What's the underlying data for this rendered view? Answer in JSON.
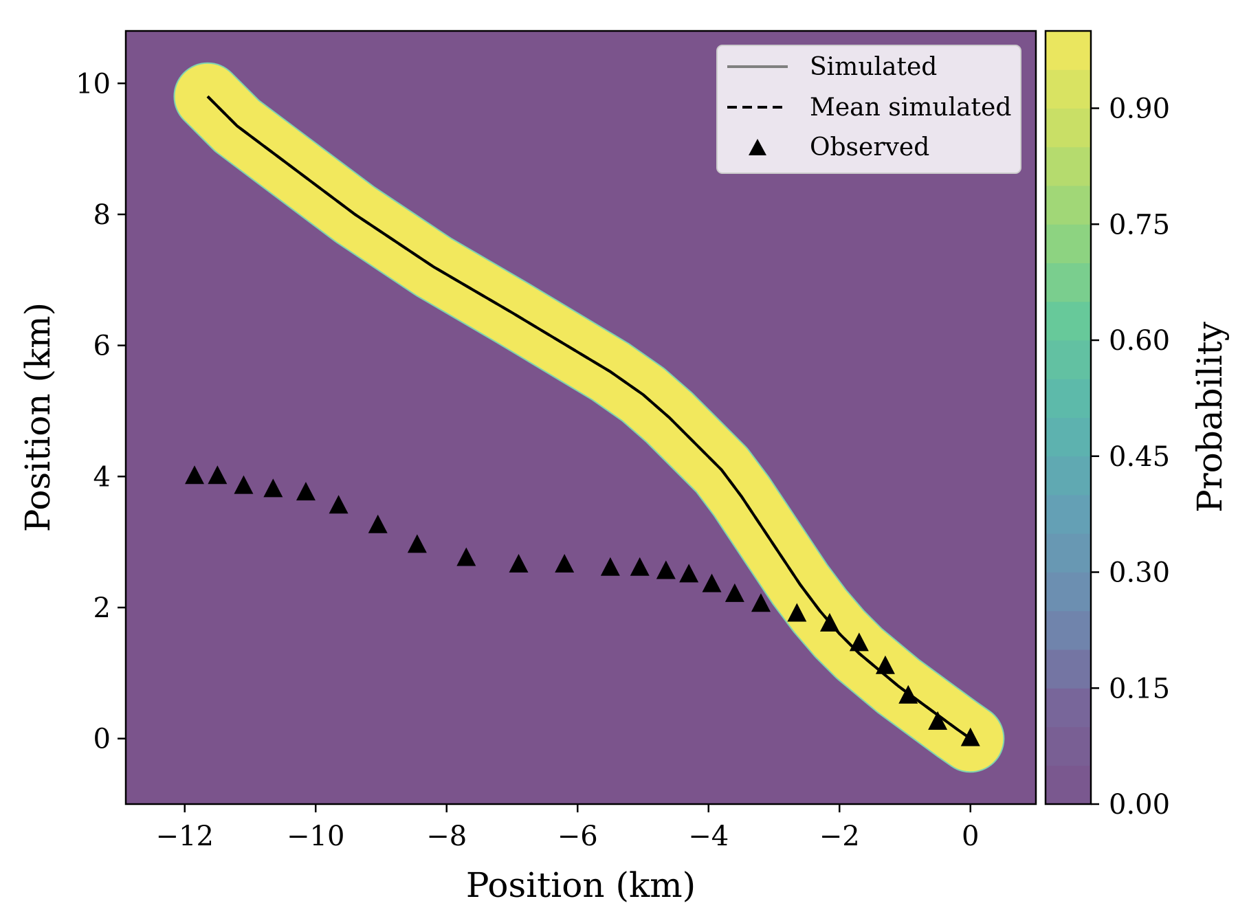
{
  "chart_data": {
    "type": "line",
    "xlabel": "Position (km)",
    "ylabel": "Position (km)",
    "xlim": [
      -12.9,
      1.0
    ],
    "ylim": [
      -1.0,
      10.8
    ],
    "x_ticks": [
      -12,
      -10,
      -8,
      -6,
      -4,
      -2,
      0
    ],
    "x_tick_labels": [
      "−12",
      "−10",
      "−8",
      "−6",
      "−4",
      "−2",
      "0"
    ],
    "y_ticks": [
      0,
      2,
      4,
      6,
      8,
      10
    ],
    "y_tick_labels": [
      "0",
      "2",
      "4",
      "6",
      "8",
      "10"
    ],
    "grid": false,
    "background_color": "#7b548c",
    "band_color": "#f2e85d",
    "band_halfwidth_km": 0.5,
    "legend": {
      "placement": "top-right",
      "entries": [
        {
          "label": "Simulated",
          "style": "solid",
          "color": "#808080"
        },
        {
          "label": "Mean simulated",
          "style": "dashed",
          "color": "#000000"
        },
        {
          "label": "Observed",
          "style": "triangle",
          "color": "#000000"
        }
      ]
    },
    "series": [
      {
        "name": "Mean simulated",
        "style": "dashed",
        "color": "#000000",
        "x": [
          -11.65,
          -11.2,
          -10.6,
          -10.0,
          -9.4,
          -8.8,
          -8.2,
          -7.6,
          -7.0,
          -6.5,
          -6.0,
          -5.5,
          -5.0,
          -4.6,
          -4.2,
          -3.8,
          -3.5,
          -3.2,
          -2.9,
          -2.6,
          -2.3,
          -2.0,
          -1.7,
          -1.4,
          -1.1,
          -0.8,
          -0.5,
          -0.2,
          0.0
        ],
        "y": [
          9.8,
          9.35,
          8.9,
          8.45,
          8.0,
          7.6,
          7.2,
          6.85,
          6.5,
          6.2,
          5.9,
          5.6,
          5.25,
          4.9,
          4.5,
          4.1,
          3.7,
          3.25,
          2.8,
          2.35,
          1.95,
          1.6,
          1.3,
          1.05,
          0.8,
          0.58,
          0.36,
          0.14,
          0.0
        ]
      },
      {
        "name": "Observed",
        "style": "triangle",
        "color": "#000000",
        "x": [
          -11.85,
          -11.5,
          -11.1,
          -10.65,
          -10.15,
          -9.65,
          -9.05,
          -8.45,
          -7.7,
          -6.9,
          -6.2,
          -5.5,
          -5.05,
          -4.65,
          -4.3,
          -3.95,
          -3.6,
          -3.2,
          -2.65,
          -2.15,
          -1.7,
          -1.3,
          -0.95,
          -0.5,
          0.0
        ],
        "y": [
          4.0,
          4.0,
          3.85,
          3.8,
          3.75,
          3.55,
          3.25,
          2.95,
          2.75,
          2.65,
          2.65,
          2.6,
          2.6,
          2.55,
          2.5,
          2.35,
          2.2,
          2.05,
          1.9,
          1.75,
          1.45,
          1.1,
          0.65,
          0.25,
          0.0
        ]
      }
    ],
    "colorbar": {
      "label": "Probability",
      "range": [
        0.0,
        1.0
      ],
      "ticks": [
        0.0,
        0.15,
        0.3,
        0.45,
        0.6,
        0.75,
        0.9
      ],
      "tick_labels": [
        "0.00",
        "0.15",
        "0.30",
        "0.45",
        "0.60",
        "0.75",
        "0.90"
      ],
      "levels": 20,
      "colormap": [
        "#7b548c",
        "#78669a",
        "#6e8bb0",
        "#64a0b5",
        "#5bb6ae",
        "#67c99a",
        "#97d57b",
        "#c9df66",
        "#f2e85d"
      ]
    }
  }
}
